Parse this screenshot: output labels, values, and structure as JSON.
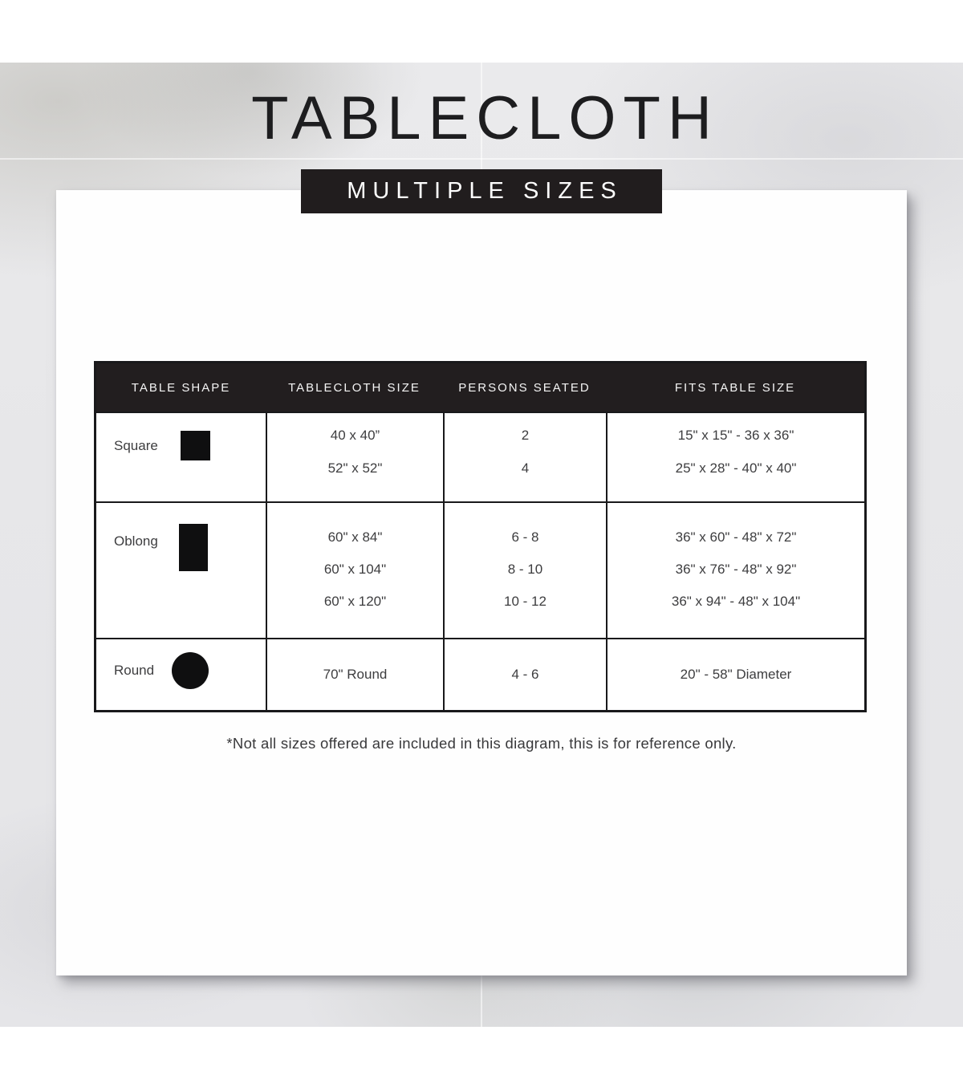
{
  "page": {
    "title": "TABLECLOTH",
    "banner": "MULTIPLE SIZES",
    "footnote": "*Not all sizes offered are included in this diagram, this is for reference only."
  },
  "colors": {
    "banner_bg": "#211D1E",
    "table_header_bg": "#221E1F",
    "table_border": "#19191B",
    "cell_text": "#3D3D3F",
    "marble_bg": "#E7E7E9",
    "card_bg": "#FEFEFE"
  },
  "table": {
    "headers": [
      "TABLE SHAPE",
      "TABLECLOTH SIZE",
      "PERSONS SEATED",
      "FITS TABLE SIZE"
    ],
    "rows": [
      {
        "shape_label": "Square",
        "shape_icon": "square-icon",
        "sizes": [
          "40 x 40”",
          "52\" x 52\""
        ],
        "persons": [
          "2",
          "4"
        ],
        "fits": [
          "15\" x 15\" - 36 x 36\"",
          "25\" x 28\" - 40\" x 40\""
        ]
      },
      {
        "shape_label": "Oblong",
        "shape_icon": "oblong-icon",
        "sizes": [
          "60\" x 84\"",
          "60\" x 104\"",
          "60\" x 120\""
        ],
        "persons": [
          "6 - 8",
          "8 - 10",
          "10 - 12"
        ],
        "fits": [
          "36\" x 60\" - 48\" x 72\"",
          "36\" x 76\" - 48\" x 92\"",
          "36\" x 94\" - 48\" x 104\""
        ]
      },
      {
        "shape_label": "Round",
        "shape_icon": "circle-icon",
        "sizes": [
          "70\" Round"
        ],
        "persons": [
          "4 - 6"
        ],
        "fits": [
          "20\" - 58\" Diameter"
        ]
      }
    ]
  }
}
